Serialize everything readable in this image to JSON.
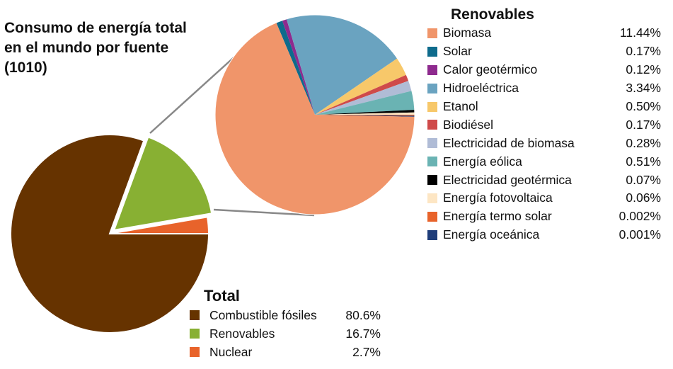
{
  "title": "Consumo de energía total en el mundo por fuente (1010)",
  "colors": {
    "fossil": "#663300",
    "renewable": "#88b033",
    "nuclear": "#e8632b",
    "connector": "#888888"
  },
  "chart_data": [
    {
      "type": "pie",
      "title": "Total",
      "slices": [
        {
          "label": "Combustible fósiles",
          "value": 80.6,
          "value_text": "80.6%",
          "color": "#663300"
        },
        {
          "label": "Renovables",
          "value": 16.7,
          "value_text": "16.7%",
          "color": "#88b033"
        },
        {
          "label": "Nuclear",
          "value": 2.7,
          "value_text": "2.7%",
          "color": "#e8632b"
        }
      ]
    },
    {
      "type": "pie",
      "title": "Renovables",
      "slices": [
        {
          "label": "Biomasa",
          "value": 11.44,
          "value_text": "11.44%",
          "color": "#f0956a"
        },
        {
          "label": "Solar",
          "value": 0.17,
          "value_text": "0.17%",
          "color": "#0e6b8c"
        },
        {
          "label": "Calor geotérmico",
          "value": 0.12,
          "value_text": "0.12%",
          "color": "#8e2a8e"
        },
        {
          "label": "Hidroeléctrica",
          "value": 3.34,
          "value_text": "3.34%",
          "color": "#6aa3c0"
        },
        {
          "label": "Etanol",
          "value": 0.5,
          "value_text": "0.50%",
          "color": "#f7c86a"
        },
        {
          "label": "Biodiésel",
          "value": 0.17,
          "value_text": "0.17%",
          "color": "#cf4a4a"
        },
        {
          "label": "Electricidad de biomasa",
          "value": 0.28,
          "value_text": "0.28%",
          "color": "#b0bcd6"
        },
        {
          "label": "Energía eólica",
          "value": 0.51,
          "value_text": "0.51%",
          "color": "#6ab3b3"
        },
        {
          "label": "Electricidad geotérmica",
          "value": 0.07,
          "value_text": "0.07%",
          "color": "#000000"
        },
        {
          "label": "Energía fotovoltaica",
          "value": 0.06,
          "value_text": "0.06%",
          "color": "#fde6c4"
        },
        {
          "label": "Energía termo solar",
          "value": 0.002,
          "value_text": "0.002%",
          "color": "#e8632b"
        },
        {
          "label": "Energía oceánica",
          "value": 0.001,
          "value_text": "0.001%",
          "color": "#1f3d7a"
        }
      ]
    }
  ]
}
